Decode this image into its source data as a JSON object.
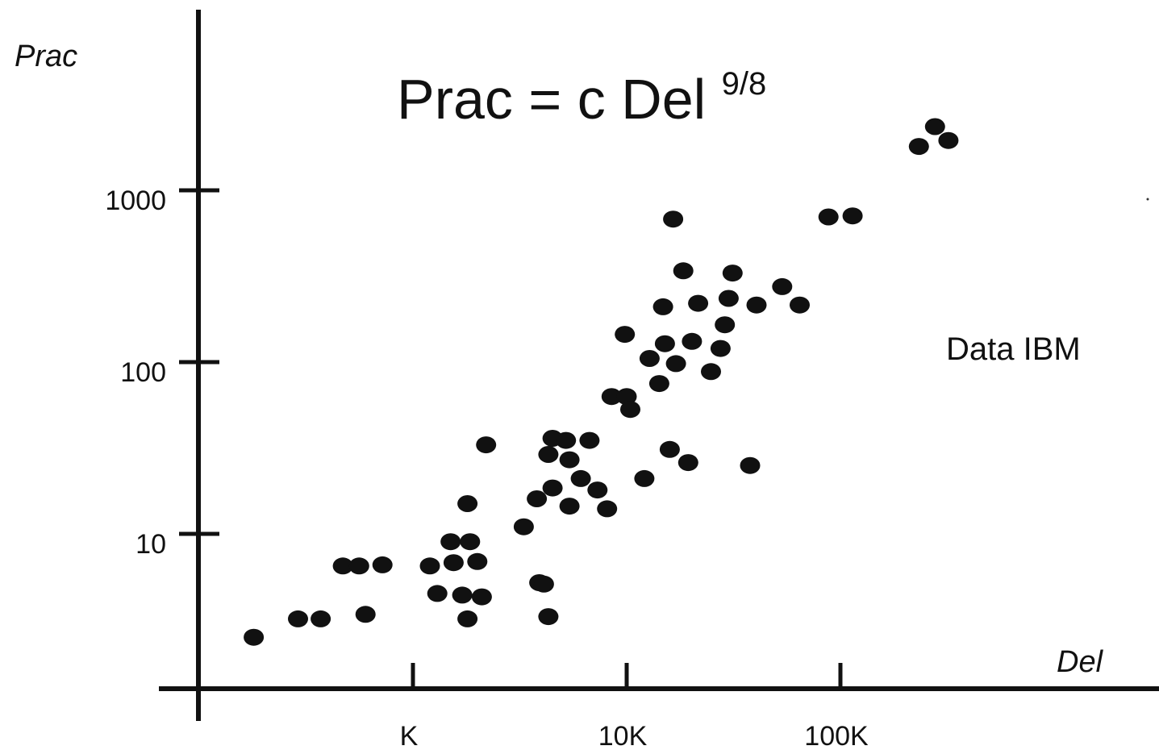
{
  "chart_data": {
    "type": "scatter",
    "xscale": "log",
    "yscale": "log",
    "xlabel": "Del",
    "ylabel": "Prac",
    "xlim": [
      100,
      10000000
    ],
    "ylim": [
      1,
      7000
    ],
    "xticks": [
      {
        "value": 1000,
        "label": "K"
      },
      {
        "value": 10000,
        "label": "10K"
      },
      {
        "value": 100000,
        "label": "100K"
      }
    ],
    "yticks": [
      {
        "value": 10,
        "label": "10"
      },
      {
        "value": 100,
        "label": "100"
      },
      {
        "value": 1000,
        "label": "1000"
      }
    ],
    "grid": false,
    "formula": {
      "main": "Prac = c Del ",
      "exponent": "9/8"
    },
    "annotation": "Data IBM",
    "points": [
      [
        180,
        2.5
      ],
      [
        290,
        3.2
      ],
      [
        370,
        3.2
      ],
      [
        470,
        6.5
      ],
      [
        560,
        6.5
      ],
      [
        720,
        6.6
      ],
      [
        600,
        3.4
      ],
      [
        1200,
        6.5
      ],
      [
        1500,
        9
      ],
      [
        1850,
        9
      ],
      [
        1550,
        6.8
      ],
      [
        2000,
        6.9
      ],
      [
        1300,
        4.5
      ],
      [
        1700,
        4.4
      ],
      [
        2100,
        4.3
      ],
      [
        1800,
        3.2
      ],
      [
        1800,
        15
      ],
      [
        2200,
        33
      ],
      [
        3300,
        11
      ],
      [
        3900,
        5.2
      ],
      [
        4100,
        5.1
      ],
      [
        4300,
        3.3
      ],
      [
        3800,
        16
      ],
      [
        4500,
        18.5
      ],
      [
        4300,
        29
      ],
      [
        4500,
        36
      ],
      [
        5400,
        27
      ],
      [
        5200,
        35
      ],
      [
        6100,
        21
      ],
      [
        6700,
        35
      ],
      [
        5400,
        14.5
      ],
      [
        7300,
        18
      ],
      [
        8100,
        14
      ],
      [
        8500,
        63
      ],
      [
        10000,
        63
      ],
      [
        10400,
        53
      ],
      [
        9800,
        145
      ],
      [
        12100,
        21
      ],
      [
        12800,
        105
      ],
      [
        14200,
        75
      ],
      [
        15100,
        128
      ],
      [
        14800,
        210
      ],
      [
        15900,
        31
      ],
      [
        16500,
        680
      ],
      [
        17000,
        98
      ],
      [
        18400,
        340
      ],
      [
        19400,
        26
      ],
      [
        20200,
        132
      ],
      [
        21600,
        220
      ],
      [
        24800,
        88
      ],
      [
        27500,
        120
      ],
      [
        28800,
        165
      ],
      [
        30000,
        235
      ],
      [
        31300,
        330
      ],
      [
        37800,
        25
      ],
      [
        40500,
        215
      ],
      [
        53400,
        275
      ],
      [
        64500,
        215
      ],
      [
        87900,
        700
      ],
      [
        114000,
        710
      ],
      [
        233000,
        1800
      ],
      [
        277000,
        2350
      ],
      [
        320000,
        1950
      ]
    ]
  }
}
